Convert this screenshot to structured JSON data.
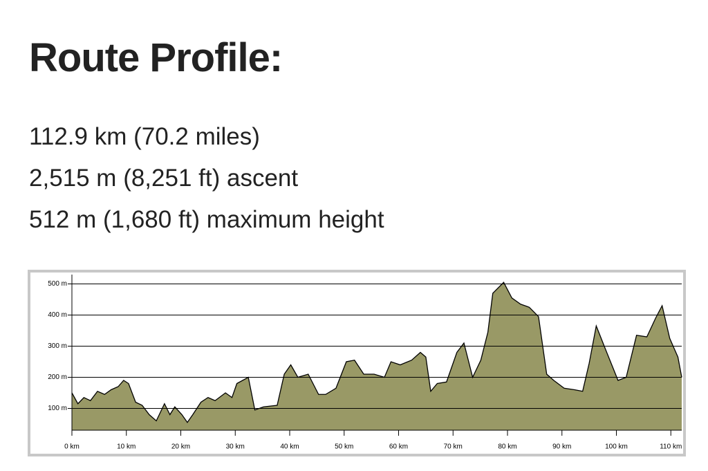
{
  "header": {
    "title": "Route Profile:",
    "lines": [
      "112.9 km (70.2 miles)",
      "2,515 m (8,251 ft) ascent",
      "512 m (1,680 ft)  maximum height"
    ]
  },
  "chart_data": {
    "type": "area",
    "x": [
      0,
      1.1,
      2.2,
      3.4,
      4.7,
      6,
      7.2,
      8.5,
      9.5,
      10.4,
      11.7,
      12.9,
      14.2,
      15.5,
      17,
      18,
      18.9,
      20.2,
      21.2,
      22.2,
      23.7,
      25,
      26.3,
      28.2,
      29.4,
      30.3,
      32.4,
      33.6,
      35.2,
      37.7,
      39,
      40.2,
      41.5,
      43.4,
      45.3,
      46.6,
      48.5,
      50.4,
      51.9,
      53.6,
      55.5,
      57.4,
      58.6,
      60.3,
      62.4,
      64,
      65,
      65.9,
      67.1,
      68.8,
      70.7,
      72,
      73.6,
      75.1,
      76.4,
      77.3,
      79.3,
      80.8,
      82.4,
      84,
      85.7,
      87.2,
      88.5,
      90.4,
      92.3,
      93.8,
      95,
      96.3,
      98,
      100.3,
      101.8,
      103.7,
      105.6,
      107.2,
      108.4,
      109.8,
      111.3,
      112
    ],
    "values": [
      150,
      115,
      135,
      125,
      155,
      145,
      160,
      170,
      190,
      180,
      120,
      110,
      80,
      60,
      115,
      80,
      105,
      80,
      55,
      80,
      120,
      135,
      125,
      150,
      135,
      180,
      200,
      95,
      105,
      110,
      210,
      240,
      200,
      210,
      145,
      145,
      165,
      250,
      255,
      210,
      210,
      200,
      250,
      240,
      255,
      280,
      265,
      155,
      180,
      185,
      280,
      310,
      200,
      255,
      345,
      470,
      505,
      455,
      435,
      425,
      395,
      210,
      190,
      165,
      160,
      155,
      245,
      365,
      290,
      190,
      200,
      335,
      330,
      390,
      430,
      325,
      265,
      200
    ],
    "color": "#999966",
    "xlim": [
      0,
      112
    ],
    "ylim": [
      30,
      530
    ],
    "xticks": [
      {
        "value": 0,
        "label": "0 km"
      },
      {
        "value": 10,
        "label": "10 km"
      },
      {
        "value": 20,
        "label": "20 km"
      },
      {
        "value": 30,
        "label": "30 km"
      },
      {
        "value": 40,
        "label": "40 km"
      },
      {
        "value": 50,
        "label": "50 km"
      },
      {
        "value": 60,
        "label": "60 km"
      },
      {
        "value": 70,
        "label": "70 km"
      },
      {
        "value": 80,
        "label": "80 km"
      },
      {
        "value": 90,
        "label": "90 km"
      },
      {
        "value": 100,
        "label": "100 km"
      },
      {
        "value": 110,
        "label": "110 km"
      }
    ],
    "yticks": [
      {
        "value": 100,
        "label": "100 m"
      },
      {
        "value": 200,
        "label": "200 m"
      },
      {
        "value": 300,
        "label": "300 m"
      },
      {
        "value": 400,
        "label": "400 m"
      },
      {
        "value": 500,
        "label": "500 m"
      }
    ],
    "grid": true
  }
}
